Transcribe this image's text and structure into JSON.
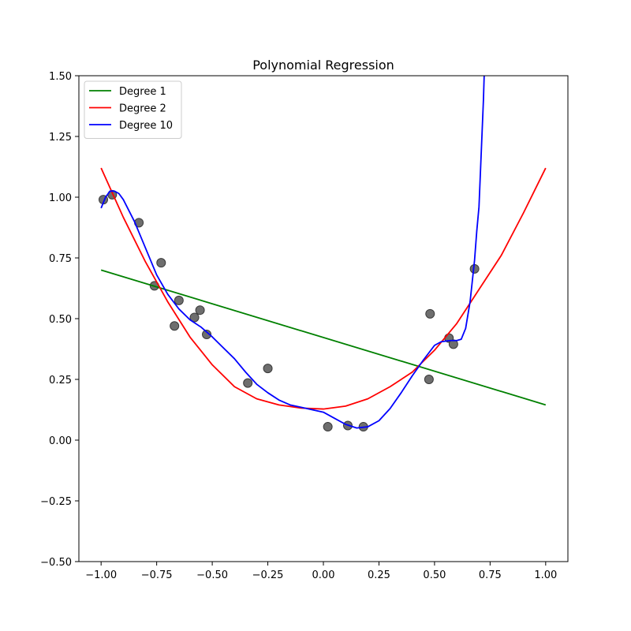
{
  "chart_data": {
    "type": "line",
    "title": "Polynomial Regression",
    "xlabel": "",
    "ylabel": "",
    "xlim": [
      -1.1,
      1.1
    ],
    "ylim": [
      -0.5,
      1.5
    ],
    "xticks": [
      -1.0,
      -0.75,
      -0.5,
      -0.25,
      0.0,
      0.25,
      0.5,
      0.75,
      1.0
    ],
    "xtick_labels": [
      "−1.00",
      "−0.75",
      "−0.50",
      "−0.25",
      "0.00",
      "0.25",
      "0.50",
      "0.75",
      "1.00"
    ],
    "yticks": [
      -0.5,
      -0.25,
      0.0,
      0.25,
      0.5,
      0.75,
      1.0,
      1.25,
      1.5
    ],
    "ytick_labels": [
      "−0.50",
      "−0.25",
      "0.00",
      "0.25",
      "0.50",
      "0.75",
      "1.00",
      "1.25",
      "1.50"
    ],
    "grid": false,
    "legend_position": "upper left",
    "scatter": {
      "color": "#6e6e6e",
      "points": [
        {
          "x": -0.99,
          "y": 0.99
        },
        {
          "x": -0.95,
          "y": 1.01
        },
        {
          "x": -0.83,
          "y": 0.895
        },
        {
          "x": -0.73,
          "y": 0.73
        },
        {
          "x": -0.76,
          "y": 0.635
        },
        {
          "x": -0.65,
          "y": 0.575
        },
        {
          "x": -0.67,
          "y": 0.47
        },
        {
          "x": -0.58,
          "y": 0.505
        },
        {
          "x": -0.555,
          "y": 0.535
        },
        {
          "x": -0.525,
          "y": 0.435
        },
        {
          "x": -0.34,
          "y": 0.235
        },
        {
          "x": -0.25,
          "y": 0.295
        },
        {
          "x": 0.02,
          "y": 0.055
        },
        {
          "x": 0.11,
          "y": 0.06
        },
        {
          "x": 0.18,
          "y": 0.055
        },
        {
          "x": 0.475,
          "y": 0.25
        },
        {
          "x": 0.48,
          "y": 0.52
        },
        {
          "x": 0.565,
          "y": 0.42
        },
        {
          "x": 0.585,
          "y": 0.395
        },
        {
          "x": 0.68,
          "y": 0.705
        }
      ]
    },
    "series": [
      {
        "name": "Degree 1",
        "color": "#008000",
        "points": [
          [
            -1.0,
            0.7
          ],
          [
            1.0,
            0.145
          ]
        ]
      },
      {
        "name": "Degree 2",
        "color": "#ff0000",
        "points": [
          [
            -1.0,
            1.12
          ],
          [
            -0.9,
            0.917
          ],
          [
            -0.8,
            0.733
          ],
          [
            -0.7,
            0.569
          ],
          [
            -0.6,
            0.424
          ],
          [
            -0.5,
            0.31
          ],
          [
            -0.4,
            0.22
          ],
          [
            -0.3,
            0.17
          ],
          [
            -0.2,
            0.145
          ],
          [
            -0.1,
            0.132
          ],
          [
            0.0,
            0.128
          ],
          [
            0.1,
            0.14
          ],
          [
            0.2,
            0.17
          ],
          [
            0.3,
            0.22
          ],
          [
            0.4,
            0.28
          ],
          [
            0.5,
            0.37
          ],
          [
            0.6,
            0.48
          ],
          [
            0.7,
            0.62
          ],
          [
            0.8,
            0.76
          ],
          [
            0.9,
            0.935
          ],
          [
            1.0,
            1.12
          ]
        ]
      },
      {
        "name": "Degree 10",
        "color": "#0000ff",
        "points": [
          [
            -1.0,
            0.955
          ],
          [
            -0.98,
            1.0
          ],
          [
            -0.96,
            1.025
          ],
          [
            -0.94,
            1.025
          ],
          [
            -0.92,
            1.015
          ],
          [
            -0.9,
            0.99
          ],
          [
            -0.85,
            0.9
          ],
          [
            -0.8,
            0.79
          ],
          [
            -0.75,
            0.68
          ],
          [
            -0.7,
            0.6
          ],
          [
            -0.65,
            0.54
          ],
          [
            -0.6,
            0.495
          ],
          [
            -0.55,
            0.465
          ],
          [
            -0.5,
            0.425
          ],
          [
            -0.45,
            0.38
          ],
          [
            -0.4,
            0.335
          ],
          [
            -0.35,
            0.28
          ],
          [
            -0.3,
            0.23
          ],
          [
            -0.25,
            0.195
          ],
          [
            -0.2,
            0.165
          ],
          [
            -0.15,
            0.145
          ],
          [
            -0.1,
            0.135
          ],
          [
            -0.05,
            0.125
          ],
          [
            0.0,
            0.115
          ],
          [
            0.05,
            0.09
          ],
          [
            0.1,
            0.065
          ],
          [
            0.15,
            0.05
          ],
          [
            0.2,
            0.055
          ],
          [
            0.25,
            0.08
          ],
          [
            0.3,
            0.13
          ],
          [
            0.35,
            0.195
          ],
          [
            0.4,
            0.265
          ],
          [
            0.45,
            0.33
          ],
          [
            0.5,
            0.39
          ],
          [
            0.53,
            0.405
          ],
          [
            0.57,
            0.41
          ],
          [
            0.6,
            0.41
          ],
          [
            0.62,
            0.415
          ],
          [
            0.64,
            0.46
          ],
          [
            0.66,
            0.57
          ],
          [
            0.68,
            0.74
          ],
          [
            0.69,
            0.86
          ],
          [
            0.7,
            0.96
          ],
          [
            0.71,
            1.18
          ],
          [
            0.72,
            1.4
          ],
          [
            0.725,
            1.55
          ]
        ]
      }
    ]
  }
}
